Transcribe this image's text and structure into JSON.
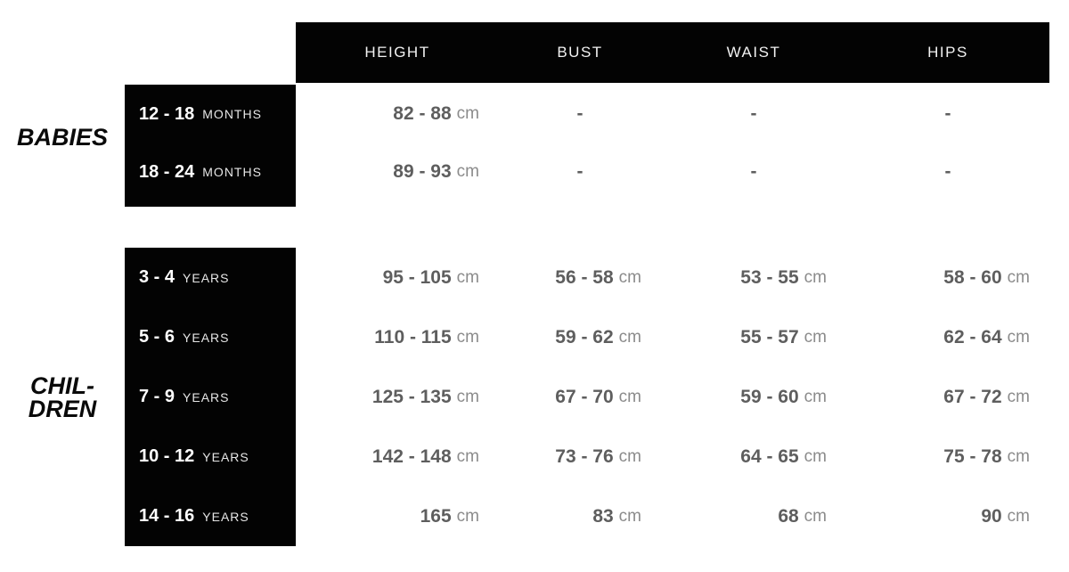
{
  "colors": {
    "bar_background": "#030303",
    "header_text": "#f2f2f2",
    "age_number": "#ffffff",
    "age_unit": "#e6e6e6",
    "value_number": "#5e5e5e",
    "value_unit": "#8b8b8b",
    "group_label": "#0a0a0a",
    "page_background": "#ffffff"
  },
  "table": {
    "headers": [
      "HEIGHT",
      "BUST",
      "WAIST",
      "HIPS"
    ],
    "groups": [
      {
        "name": "babies",
        "label_lines": [
          "BABIES"
        ],
        "rows": [
          {
            "age": "12 - 18",
            "age_unit": "MONTHS",
            "cells": [
              {
                "value": "82 - 88",
                "unit": "cm"
              },
              {
                "value": "-",
                "unit": ""
              },
              {
                "value": "-",
                "unit": ""
              },
              {
                "value": "-",
                "unit": ""
              }
            ]
          },
          {
            "age": "18 - 24",
            "age_unit": "MONTHS",
            "cells": [
              {
                "value": "89 - 93",
                "unit": "cm"
              },
              {
                "value": "-",
                "unit": ""
              },
              {
                "value": "-",
                "unit": ""
              },
              {
                "value": "-",
                "unit": ""
              }
            ]
          }
        ]
      },
      {
        "name": "children",
        "label_lines": [
          "CHIL-",
          "DREN"
        ],
        "rows": [
          {
            "age": "3 - 4",
            "age_unit": "YEARS",
            "cells": [
              {
                "value": "95 - 105",
                "unit": "cm"
              },
              {
                "value": "56 - 58",
                "unit": "cm"
              },
              {
                "value": "53 - 55",
                "unit": "cm"
              },
              {
                "value": "58 - 60",
                "unit": "cm"
              }
            ]
          },
          {
            "age": "5 - 6",
            "age_unit": "YEARS",
            "cells": [
              {
                "value": "110 - 115",
                "unit": "cm"
              },
              {
                "value": "59 - 62",
                "unit": "cm"
              },
              {
                "value": "55 - 57",
                "unit": "cm"
              },
              {
                "value": "62 - 64",
                "unit": "cm"
              }
            ]
          },
          {
            "age": "7 - 9",
            "age_unit": "YEARS",
            "cells": [
              {
                "value": "125 - 135",
                "unit": "cm"
              },
              {
                "value": "67 - 70",
                "unit": "cm"
              },
              {
                "value": "59 - 60",
                "unit": "cm"
              },
              {
                "value": "67 - 72",
                "unit": "cm"
              }
            ]
          },
          {
            "age": "10 - 12",
            "age_unit": "YEARS",
            "cells": [
              {
                "value": "142 - 148",
                "unit": "cm"
              },
              {
                "value": "73 - 76",
                "unit": "cm"
              },
              {
                "value": "64 - 65",
                "unit": "cm"
              },
              {
                "value": "75 - 78",
                "unit": "cm"
              }
            ]
          },
          {
            "age": "14 - 16",
            "age_unit": "YEARS",
            "cells": [
              {
                "value": "165",
                "unit": "cm"
              },
              {
                "value": "83",
                "unit": "cm"
              },
              {
                "value": "68",
                "unit": "cm"
              },
              {
                "value": "90",
                "unit": "cm"
              }
            ]
          }
        ]
      }
    ]
  }
}
